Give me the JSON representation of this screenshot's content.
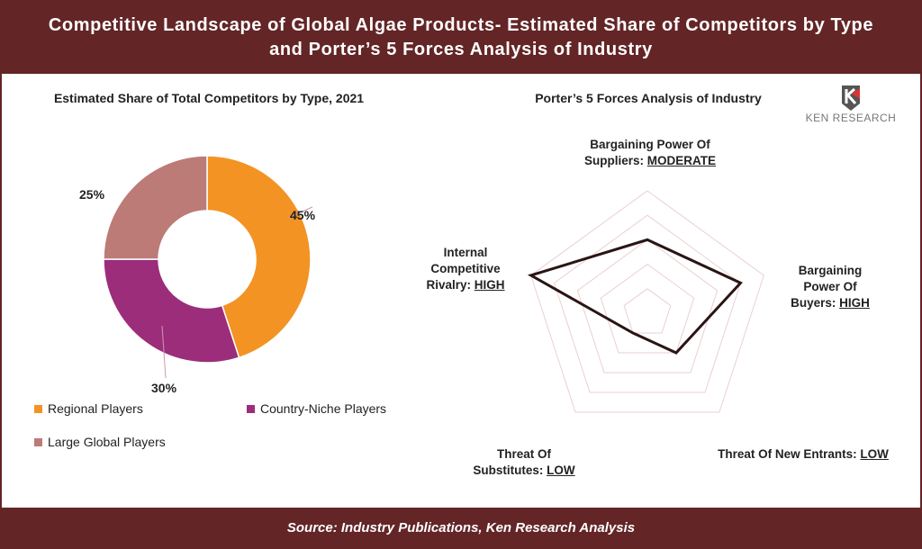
{
  "header": {
    "title_line1": "Competitive Landscape of Global Algae Products- Estimated Share of Competitors by Type",
    "title_line2": "and Porter’s 5 Forces Analysis of Industry"
  },
  "footer": {
    "source": "Source: Industry Publications, Ken Research Analysis"
  },
  "logo": {
    "text": "KEN RESEARCH"
  },
  "chart_data": [
    {
      "type": "pie",
      "title": "Estimated Share of Total Competitors by Type, 2021",
      "categories": [
        "Regional Players",
        "Country-Niche Players",
        "Large Global Players"
      ],
      "values": [
        45,
        30,
        25
      ],
      "labels": [
        "45%",
        "30%",
        "25%"
      ],
      "colors": [
        "#F39324",
        "#9C2D7B",
        "#BC7B77"
      ],
      "legend": "bottom"
    },
    {
      "type": "radar",
      "title": "Porter’s 5 Forces Analysis of Industry",
      "max": 5,
      "axes": [
        {
          "label": "Bargaining Power Of Suppliers:",
          "level": "MODERATE",
          "value": 3
        },
        {
          "label": "Bargaining Power Of Buyers:",
          "level": "HIGH",
          "value": 4
        },
        {
          "label": "Threat Of New Entrants:",
          "level": "LOW",
          "value": 2
        },
        {
          "label": "Threat Of Substitutes:",
          "level": "LOW",
          "value": 1
        },
        {
          "label": "Internal Competitive Rivalry:",
          "level": "HIGH",
          "value": 5
        }
      ]
    }
  ]
}
